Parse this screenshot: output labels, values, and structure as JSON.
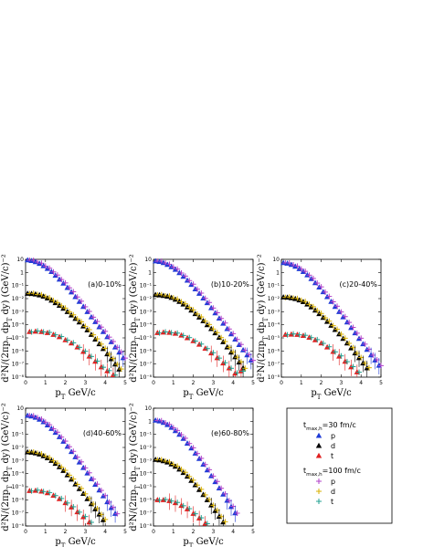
{
  "axes": {
    "xlabel": "p_T GeV/c",
    "ylabel": "d²N/(2πp_T dp_T dy) (GeV/c)⁻²",
    "xlim": [
      0,
      5
    ],
    "ylim_exp": [
      -8,
      1
    ],
    "xticks": [
      "0",
      "1",
      "2",
      "3",
      "4",
      "5"
    ],
    "yticks": [
      "10⁻⁸",
      "10⁻⁷",
      "10⁻⁶",
      "10⁻⁵",
      "10⁻⁴",
      "10⁻³",
      "10⁻²",
      "10⁻¹",
      "1",
      "10"
    ],
    "yscale": "log"
  },
  "legend": {
    "group1_title": "t_max,h=30 fm/c",
    "group2_title": "t_max,h=100 fm/c",
    "entries": [
      {
        "group": 1,
        "label": "p",
        "marker": "triangle",
        "color": "#1f3bd6"
      },
      {
        "group": 1,
        "label": "d",
        "marker": "triangle",
        "color": "#000000"
      },
      {
        "group": 1,
        "label": "t",
        "marker": "triangle",
        "color": "#e02020"
      },
      {
        "group": 2,
        "label": "p",
        "marker": "plus",
        "color": "#b040c8"
      },
      {
        "group": 2,
        "label": "d",
        "marker": "plus",
        "color": "#d8b000"
      },
      {
        "group": 2,
        "label": "t",
        "marker": "plus",
        "color": "#20a090"
      }
    ]
  },
  "chart_data": [
    {
      "type": "scatter",
      "label": "(a)0-10%",
      "yscale": "log",
      "xlim": [
        0,
        5
      ],
      "ylim": [
        1e-08,
        10
      ],
      "series": [
        {
          "particle": "p",
          "x": [
            0.1,
            0.3,
            0.5,
            0.7,
            0.9,
            1.1,
            1.3,
            1.5,
            1.7,
            1.9,
            2.1,
            2.3,
            2.5,
            2.7,
            2.9,
            3.1,
            3.3,
            3.5,
            3.7,
            3.9,
            4.1,
            4.3,
            4.5,
            4.7,
            4.9
          ],
          "y": [
            9,
            8,
            6.5,
            4.8,
            3.2,
            2.0,
            1.15,
            0.6,
            0.3,
            0.15,
            0.07,
            0.032,
            0.014,
            0.006,
            0.0025,
            0.001,
            0.0004,
            0.00017,
            7e-05,
            3e-05,
            1.2e-05,
            5e-06,
            2e-06,
            8e-07,
            3e-07
          ]
        },
        {
          "particle": "d",
          "x": [
            0.1,
            0.3,
            0.5,
            0.7,
            0.9,
            1.1,
            1.3,
            1.5,
            1.7,
            1.9,
            2.1,
            2.3,
            2.5,
            2.7,
            2.9,
            3.1,
            3.3,
            3.5,
            3.7,
            3.9,
            4.1,
            4.3,
            4.5,
            4.7
          ],
          "y": [
            0.025,
            0.024,
            0.022,
            0.019,
            0.015,
            0.011,
            0.0075,
            0.0048,
            0.003,
            0.0018,
            0.001,
            0.00055,
            0.0003,
            0.00016,
            8e-05,
            4e-05,
            1.8e-05,
            8e-06,
            3.5e-06,
            1.5e-06,
            6e-07,
            2.5e-07,
            1e-07,
            4e-08
          ]
        },
        {
          "particle": "t",
          "x": [
            0.2,
            0.5,
            0.8,
            1.1,
            1.4,
            1.7,
            2.0,
            2.3,
            2.6,
            2.9,
            3.2,
            3.5,
            3.8,
            4.1,
            4.4
          ],
          "y": [
            3e-05,
            3.2e-05,
            3e-05,
            2.5e-05,
            1.8e-05,
            1.2e-05,
            7e-06,
            4e-06,
            2e-06,
            9e-07,
            4e-07,
            1.6e-07,
            6e-08,
            3e-08,
            1.5e-08
          ]
        }
      ]
    },
    {
      "type": "scatter",
      "label": "(b)10-20%",
      "yscale": "log",
      "xlim": [
        0,
        5
      ],
      "ylim": [
        1e-08,
        10
      ],
      "series": [
        {
          "particle": "p",
          "x": [
            0.1,
            0.3,
            0.5,
            0.7,
            0.9,
            1.1,
            1.3,
            1.5,
            1.7,
            1.9,
            2.1,
            2.3,
            2.5,
            2.7,
            2.9,
            3.1,
            3.3,
            3.5,
            3.7,
            3.9,
            4.1,
            4.3,
            4.5,
            4.7,
            4.9
          ],
          "y": [
            7.5,
            6.8,
            5.5,
            4.0,
            2.7,
            1.7,
            0.95,
            0.5,
            0.25,
            0.12,
            0.055,
            0.025,
            0.011,
            0.0048,
            0.002,
            0.0008,
            0.00032,
            0.00013,
            5e-05,
            2e-05,
            8e-06,
            3e-06,
            1.2e-06,
            5e-07,
            2e-07
          ]
        },
        {
          "particle": "d",
          "x": [
            0.1,
            0.3,
            0.5,
            0.7,
            0.9,
            1.1,
            1.3,
            1.5,
            1.7,
            1.9,
            2.1,
            2.3,
            2.5,
            2.7,
            2.9,
            3.1,
            3.3,
            3.5,
            3.7,
            3.9,
            4.1,
            4.3,
            4.5
          ],
          "y": [
            0.02,
            0.019,
            0.017,
            0.015,
            0.012,
            0.0088,
            0.006,
            0.0038,
            0.0023,
            0.0013,
            0.0007,
            0.00038,
            0.0002,
            0.0001,
            5e-05,
            2.4e-05,
            1.1e-05,
            5e-06,
            2e-06,
            8e-07,
            3.5e-07,
            1.4e-07,
            5e-08
          ]
        },
        {
          "particle": "t",
          "x": [
            0.2,
            0.5,
            0.8,
            1.1,
            1.4,
            1.7,
            2.0,
            2.3,
            2.6,
            2.9,
            3.2,
            3.5,
            3.8,
            4.1,
            4.4
          ],
          "y": [
            2.5e-05,
            2.7e-05,
            2.6e-05,
            2.2e-05,
            1.6e-05,
            1e-05,
            6e-06,
            3.2e-06,
            1.6e-06,
            7e-07,
            3e-07,
            1.2e-07,
            5e-08,
            2e-08,
            3e-08
          ]
        }
      ]
    },
    {
      "type": "scatter",
      "label": "(c)20-40%",
      "yscale": "log",
      "xlim": [
        0,
        5
      ],
      "ylim": [
        1e-08,
        10
      ],
      "series": [
        {
          "particle": "p",
          "x": [
            0.1,
            0.3,
            0.5,
            0.7,
            0.9,
            1.1,
            1.3,
            1.5,
            1.7,
            1.9,
            2.1,
            2.3,
            2.5,
            2.7,
            2.9,
            3.1,
            3.3,
            3.5,
            3.7,
            3.9,
            4.1,
            4.3,
            4.5,
            4.7,
            4.9
          ],
          "y": [
            5.5,
            5.0,
            4.0,
            2.9,
            1.9,
            1.15,
            0.65,
            0.33,
            0.16,
            0.075,
            0.033,
            0.014,
            0.006,
            0.0025,
            0.001,
            0.0004,
            0.00016,
            6e-05,
            2.4e-05,
            9e-06,
            3.5e-06,
            1.3e-06,
            5e-07,
            2e-07,
            8e-08
          ]
        },
        {
          "particle": "d",
          "x": [
            0.1,
            0.3,
            0.5,
            0.7,
            0.9,
            1.1,
            1.3,
            1.5,
            1.7,
            1.9,
            2.1,
            2.3,
            2.5,
            2.7,
            2.9,
            3.1,
            3.3,
            3.5,
            3.7,
            3.9,
            4.1,
            4.3
          ],
          "y": [
            0.013,
            0.0125,
            0.0115,
            0.0098,
            0.0078,
            0.0057,
            0.0038,
            0.0023,
            0.0013,
            0.0007,
            0.00036,
            0.00018,
            9e-05,
            4.3e-05,
            2e-05,
            9e-06,
            4e-06,
            1.7e-06,
            7e-07,
            3e-07,
            1.2e-07,
            5e-08
          ]
        },
        {
          "particle": "t",
          "x": [
            0.2,
            0.5,
            0.8,
            1.1,
            1.4,
            1.7,
            2.0,
            2.3,
            2.6,
            2.9,
            3.2,
            3.5,
            3.8
          ],
          "y": [
            1.8e-05,
            1.9e-05,
            1.8e-05,
            1.5e-05,
            1.1e-05,
            7e-06,
            4e-06,
            2e-06,
            9e-07,
            4e-07,
            1.6e-07,
            6e-08,
            2.5e-08
          ]
        }
      ]
    },
    {
      "type": "scatter",
      "label": "(d)40-60%",
      "yscale": "log",
      "xlim": [
        0,
        5
      ],
      "ylim": [
        1e-08,
        10
      ],
      "series": [
        {
          "particle": "p",
          "x": [
            0.1,
            0.3,
            0.5,
            0.7,
            0.9,
            1.1,
            1.3,
            1.5,
            1.7,
            1.9,
            2.1,
            2.3,
            2.5,
            2.7,
            2.9,
            3.1,
            3.3,
            3.5,
            3.7,
            3.9,
            4.1,
            4.3,
            4.5
          ],
          "y": [
            2.8,
            2.5,
            2.0,
            1.4,
            0.9,
            0.52,
            0.28,
            0.14,
            0.065,
            0.029,
            0.012,
            0.0048,
            0.0019,
            0.00075,
            0.00029,
            0.00011,
            4e-05,
            1.5e-05,
            5.5e-06,
            2e-06,
            7e-07,
            2.5e-07,
            9e-08
          ]
        },
        {
          "particle": "d",
          "x": [
            0.1,
            0.3,
            0.5,
            0.7,
            0.9,
            1.1,
            1.3,
            1.5,
            1.7,
            1.9,
            2.1,
            2.3,
            2.5,
            2.7,
            2.9,
            3.1,
            3.3,
            3.5,
            3.7,
            3.9
          ],
          "y": [
            0.0045,
            0.0043,
            0.0038,
            0.0031,
            0.0023,
            0.0016,
            0.001,
            0.0006,
            0.00033,
            0.00017,
            8e-05,
            3.7e-05,
            1.6e-05,
            7e-06,
            3e-06,
            1.2e-06,
            5e-07,
            2e-07,
            8e-08,
            3e-08
          ]
        },
        {
          "particle": "t",
          "x": [
            0.2,
            0.5,
            0.8,
            1.1,
            1.4,
            1.7,
            2.0,
            2.3,
            2.6,
            2.9,
            3.2
          ],
          "y": [
            5e-06,
            5.2e-06,
            4.5e-06,
            3.4e-06,
            2.2e-06,
            1.2e-06,
            6e-07,
            2.8e-07,
            1.2e-07,
            5e-08,
            2e-08
          ]
        }
      ]
    },
    {
      "type": "scatter",
      "label": "(e)60-80%",
      "yscale": "log",
      "xlim": [
        0,
        5
      ],
      "ylim": [
        1e-08,
        10
      ],
      "series": [
        {
          "particle": "p",
          "x": [
            0.1,
            0.3,
            0.5,
            0.7,
            0.9,
            1.1,
            1.3,
            1.5,
            1.7,
            1.9,
            2.1,
            2.3,
            2.5,
            2.7,
            2.9,
            3.1,
            3.3,
            3.5,
            3.7,
            3.9,
            4.1
          ],
          "y": [
            1.2,
            1.05,
            0.8,
            0.55,
            0.34,
            0.19,
            0.1,
            0.048,
            0.021,
            0.009,
            0.0036,
            0.0014,
            0.00052,
            0.00019,
            6.8e-05,
            2.4e-05,
            8e-06,
            2.7e-06,
            9e-07,
            3e-07,
            1e-07
          ]
        },
        {
          "particle": "d",
          "x": [
            0.1,
            0.3,
            0.5,
            0.7,
            0.9,
            1.1,
            1.3,
            1.5,
            1.7,
            1.9,
            2.1,
            2.3,
            2.5,
            2.7,
            2.9,
            3.1,
            3.3,
            3.5
          ],
          "y": [
            0.0012,
            0.0011,
            0.00095,
            0.00075,
            0.00054,
            0.00036,
            0.00022,
            0.00012,
            6.3e-05,
            3e-05,
            1.4e-05,
            6e-06,
            2.5e-06,
            1e-06,
            4e-07,
            1.5e-07,
            5.5e-08,
            2e-08
          ]
        },
        {
          "particle": "t",
          "x": [
            0.2,
            0.5,
            0.8,
            1.1,
            1.4,
            1.7,
            2.0,
            2.3,
            2.6
          ],
          "y": [
            1e-06,
            1e-06,
            8.5e-07,
            6e-07,
            3.7e-07,
            2e-07,
            9e-08,
            4e-08,
            1.6e-08
          ]
        }
      ]
    }
  ]
}
